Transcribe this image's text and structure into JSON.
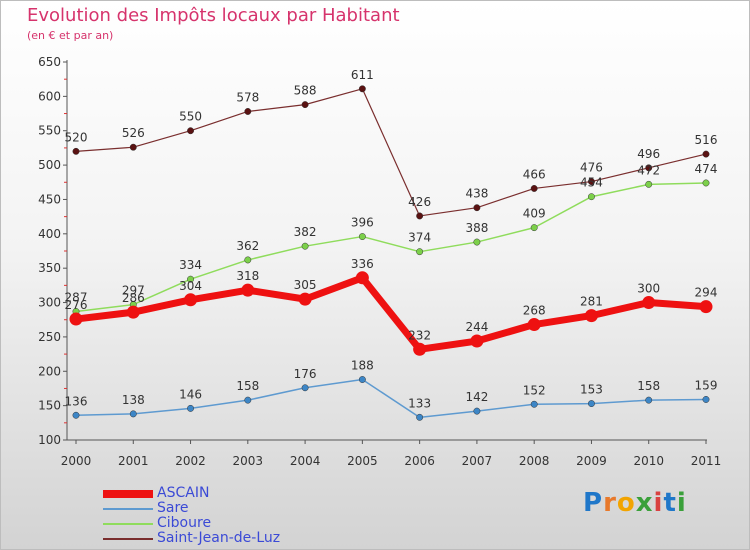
{
  "title": "Evolution des Impôts locaux par Habitant",
  "subtitle": "(en € et par an)",
  "logo": {
    "text": "Proxiti",
    "letters": [
      "P",
      "r",
      "o",
      "x",
      "i",
      "t",
      "i"
    ],
    "colors": [
      "#1f77c9",
      "#e8792b",
      "#f2a400",
      "#3aa03a",
      "#d94141",
      "#1f77c9",
      "#3aa03a"
    ]
  },
  "chart_data": {
    "type": "line",
    "title": "Evolution des Impôts locaux par Habitant",
    "subtitle": "(en € et par an)",
    "xlabel": "",
    "ylabel": "",
    "categories": [
      "2000",
      "2001",
      "2002",
      "2003",
      "2004",
      "2005",
      "2006",
      "2007",
      "2008",
      "2009",
      "2010",
      "2011"
    ],
    "ylim": [
      100,
      650
    ],
    "yticks": [
      100,
      150,
      200,
      250,
      300,
      350,
      400,
      450,
      500,
      550,
      600,
      650
    ],
    "grid": false,
    "legend_position": "bottom-left",
    "series": [
      {
        "name": "Saint-Jean-de-Luz",
        "color": "#7a2e2e",
        "marker": "#5a1212",
        "width": 1.2,
        "values": [
          520,
          526,
          550,
          578,
          588,
          611,
          426,
          438,
          466,
          476,
          496,
          516
        ],
        "labels": [
          "520",
          "526",
          "550",
          "578",
          "588",
          "611",
          "426",
          "438",
          "466",
          "476",
          "496",
          "516"
        ]
      },
      {
        "name": "Ciboure",
        "color": "#8fdc5c",
        "marker": "#7cd04a",
        "width": 1.5,
        "values": [
          287,
          297,
          334,
          362,
          382,
          396,
          374,
          388,
          409,
          454,
          472,
          474
        ],
        "labels": [
          "287",
          "297",
          "334",
          "362",
          "382",
          "396",
          "374",
          "388",
          "409",
          "454",
          "472",
          "474"
        ]
      },
      {
        "name": "Sare",
        "color": "#5e9ad0",
        "marker": "#3d86c6",
        "width": 1.5,
        "values": [
          136,
          138,
          146,
          158,
          176,
          188,
          133,
          142,
          152,
          153,
          158,
          159
        ],
        "labels": [
          "136",
          "138",
          "146",
          "158",
          "176",
          "188",
          "133",
          "142",
          "152",
          "153",
          "158",
          "159"
        ]
      },
      {
        "name": "ASCAIN",
        "color": "#ee1111",
        "marker": "#ee1111",
        "width": 7,
        "values": [
          276,
          286,
          304,
          318,
          305,
          336,
          232,
          244,
          268,
          281,
          300,
          294
        ],
        "labels": [
          "276",
          "286",
          "304",
          "318",
          "305",
          "336",
          "232",
          "244",
          "268",
          "281",
          "300",
          "294"
        ]
      }
    ],
    "legend": [
      "ASCAIN",
      "Sare",
      "Ciboure",
      "Saint-Jean-de-Luz"
    ]
  }
}
